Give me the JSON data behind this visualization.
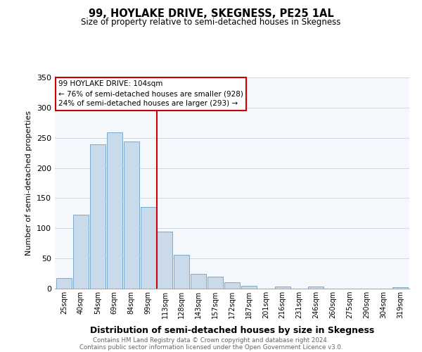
{
  "title": "99, HOYLAKE DRIVE, SKEGNESS, PE25 1AL",
  "subtitle": "Size of property relative to semi-detached houses in Skegness",
  "xlabel": "Distribution of semi-detached houses by size in Skegness",
  "ylabel": "Number of semi-detached properties",
  "bar_labels": [
    "25sqm",
    "40sqm",
    "54sqm",
    "69sqm",
    "84sqm",
    "99sqm",
    "113sqm",
    "128sqm",
    "143sqm",
    "157sqm",
    "172sqm",
    "187sqm",
    "201sqm",
    "216sqm",
    "231sqm",
    "246sqm",
    "260sqm",
    "275sqm",
    "290sqm",
    "304sqm",
    "319sqm"
  ],
  "bar_values": [
    17,
    122,
    239,
    259,
    244,
    135,
    94,
    56,
    25,
    20,
    10,
    5,
    0,
    3,
    0,
    3,
    0,
    0,
    0,
    0,
    2
  ],
  "bar_color": "#c9daea",
  "bar_edgecolor": "#7aaac8",
  "property_line_x": 5.5,
  "annotation_title": "99 HOYLAKE DRIVE: 104sqm",
  "annotation_line1": "← 76% of semi-detached houses are smaller (928)",
  "annotation_line2": "24% of semi-detached houses are larger (293) →",
  "vline_color": "#cc0000",
  "ylim": [
    0,
    350
  ],
  "yticks": [
    0,
    50,
    100,
    150,
    200,
    250,
    300,
    350
  ],
  "footer1": "Contains HM Land Registry data © Crown copyright and database right 2024.",
  "footer2": "Contains public sector information licensed under the Open Government Licence v3.0.",
  "bg_color": "#ffffff",
  "plot_bg_color": "#f4f8fc"
}
